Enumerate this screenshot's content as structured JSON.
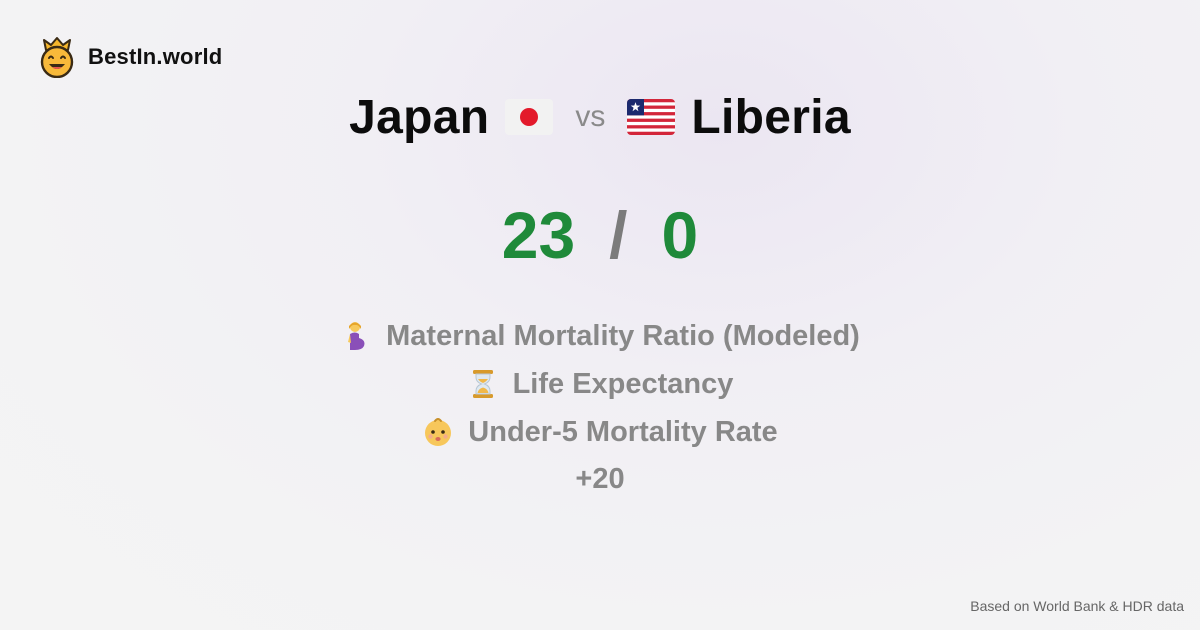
{
  "brand": {
    "name": "BestIn.world",
    "logo_icon": "crown-smiley-icon"
  },
  "comparison": {
    "left": {
      "name": "Japan",
      "flag_icon": "japan-flag-icon"
    },
    "separator": "vs",
    "right": {
      "name": "Liberia",
      "flag_icon": "liberia-flag-icon"
    }
  },
  "score": {
    "left": "23",
    "separator": "/",
    "right": "0",
    "color": "#1f8a3a"
  },
  "metrics": [
    {
      "label": "Maternal Mortality Ratio (Modeled)",
      "icon": "pregnant-woman-icon"
    },
    {
      "label": "Life Expectancy",
      "icon": "hourglass-icon"
    },
    {
      "label": "Under-5 Mortality Rate",
      "icon": "baby-icon"
    }
  ],
  "more_count": "+20",
  "footer": {
    "source": "Based on World Bank & HDR data"
  }
}
